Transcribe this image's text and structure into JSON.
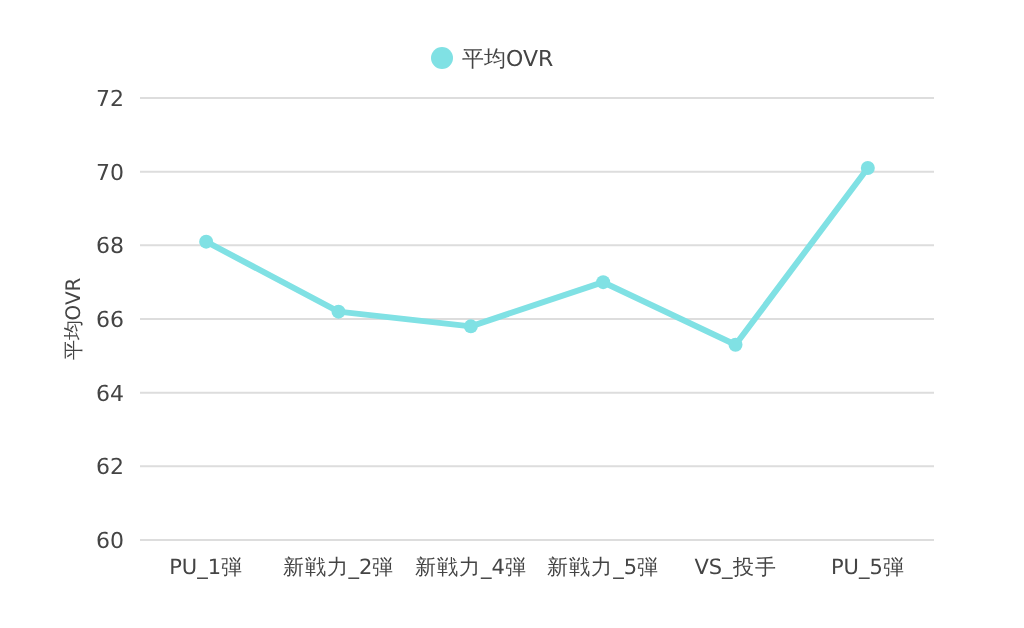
{
  "chart_data": {
    "type": "line",
    "ylabel": "平均OVR",
    "categories": [
      "PU_1弾",
      "新戦力_2弾",
      "新戦力_4弾",
      "新戦力_5弾",
      "VS_投手",
      "PU_5弾"
    ],
    "series": [
      {
        "name": "平均OVR",
        "color": "#80e1e4",
        "values": [
          68.1,
          66.2,
          65.8,
          67.0,
          65.3,
          70.1
        ]
      }
    ],
    "ylim": [
      60,
      72
    ],
    "yticks": [
      60,
      62,
      64,
      66,
      68,
      70,
      72
    ],
    "grid": "y",
    "legend": "top",
    "marker": "circle",
    "line_style": "solid"
  }
}
